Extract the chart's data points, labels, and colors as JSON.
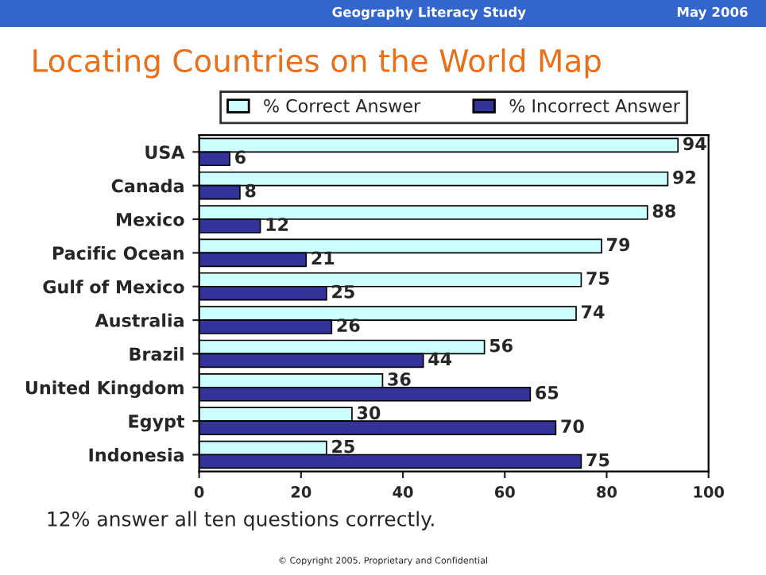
{
  "chart_data": {
    "type": "bar",
    "orientation": "horizontal",
    "title": "Locating Countries on the World Map",
    "categories": [
      "USA",
      "Canada",
      "Mexico",
      "Pacific Ocean",
      "Gulf of Mexico",
      "Australia",
      "Brazil",
      "United Kingdom",
      "Egypt",
      "Indonesia"
    ],
    "series": [
      {
        "name": "% Correct Answer",
        "color": "#ccffff",
        "values": [
          94,
          92,
          88,
          79,
          75,
          74,
          56,
          36,
          30,
          25
        ]
      },
      {
        "name": "% Incorrect Answer",
        "color": "#333399",
        "values": [
          6,
          8,
          12,
          21,
          25,
          26,
          44,
          65,
          70,
          75
        ]
      }
    ],
    "xlim": [
      0,
      100
    ],
    "xticks": [
      0,
      20,
      40,
      60,
      80,
      100
    ],
    "data_labels": true,
    "legend": "top",
    "grid": false,
    "annotations": [
      "Geography Literacy Study",
      "May 2006",
      "12% answer all ten questions correctly.",
      "© Copyright 2005. Proprietary and Confidential"
    ]
  }
}
